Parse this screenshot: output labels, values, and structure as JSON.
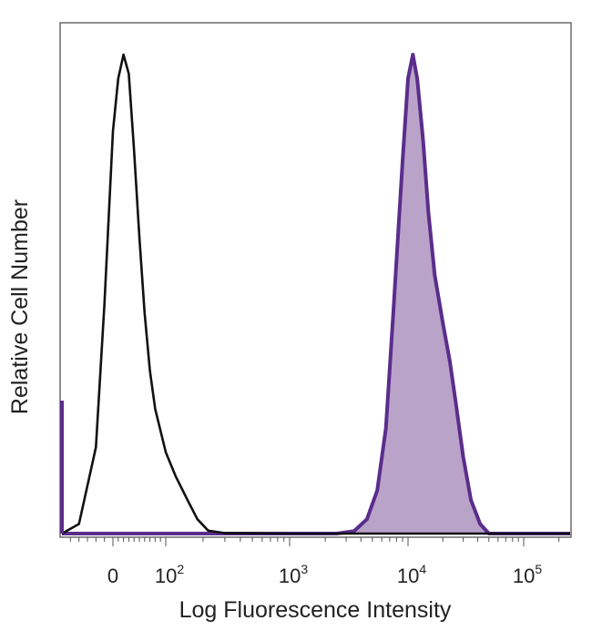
{
  "chart_data": {
    "type": "area",
    "title": "",
    "xlabel": "Log Fluorescence Intensity",
    "ylabel": "Relative Cell Number",
    "x_scale": "biexponential",
    "xlim": [
      -60,
      250000
    ],
    "ylim": [
      0,
      100
    ],
    "x_ticks": [
      {
        "value": 0,
        "base": "0",
        "exp": ""
      },
      {
        "value": 100,
        "base": "10",
        "exp": "2"
      },
      {
        "value": 1000,
        "base": "10",
        "exp": "3"
      },
      {
        "value": 10000,
        "base": "10",
        "exp": "4"
      },
      {
        "value": 100000,
        "base": "10",
        "exp": "5"
      }
    ],
    "grid": false,
    "legend": "none",
    "series": [
      {
        "style": "outline",
        "color": "#111111",
        "x": [
          -60,
          -40,
          -20,
          -10,
          0,
          10,
          20,
          30,
          40,
          50,
          60,
          70,
          80,
          100,
          120,
          150,
          180,
          220,
          300,
          1000,
          5000,
          30000,
          250000
        ],
        "y": [
          0,
          2,
          18,
          48,
          84,
          95,
          100,
          96,
          80,
          62,
          46,
          34,
          26,
          17,
          12,
          7,
          3,
          0.6,
          0.1,
          0,
          0,
          0,
          0
        ]
      },
      {
        "style": "filled",
        "color": "#5a2d8c",
        "fill": "#b9a3c9",
        "x": [
          -60,
          300,
          2500,
          3500,
          4500,
          5500,
          6500,
          7500,
          9000,
          10000,
          11000,
          12000,
          13500,
          15000,
          17000,
          20000,
          23000,
          26000,
          30000,
          35000,
          42000,
          50000,
          250000
        ],
        "y": [
          0,
          0,
          0,
          0.5,
          3,
          9,
          22,
          46,
          78,
          95,
          100,
          95,
          82,
          67,
          54,
          44,
          36,
          27,
          16,
          7,
          2,
          0,
          0
        ]
      }
    ]
  }
}
